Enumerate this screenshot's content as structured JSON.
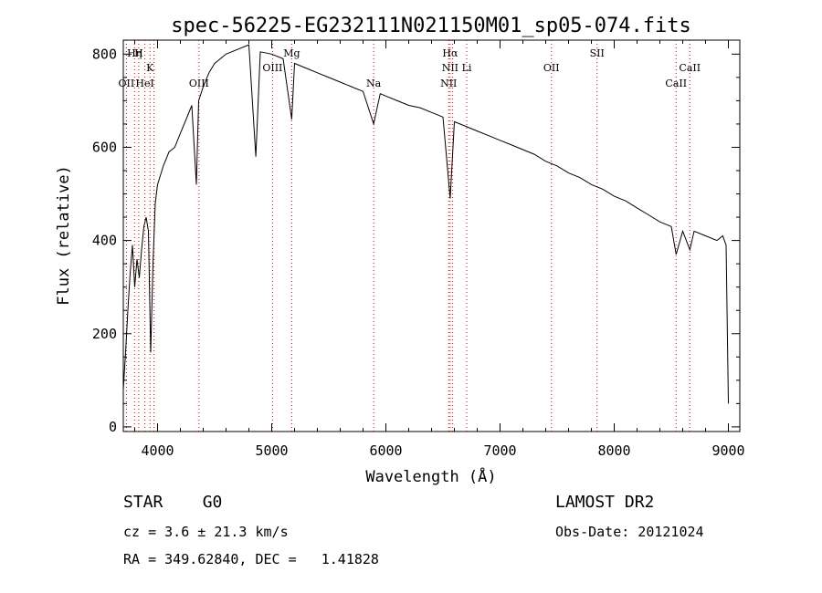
{
  "chart_data": {
    "type": "line",
    "title": "spec-56225-EG232111N021150M01_sp05-074.fits",
    "xlabel": "Wavelength (Å)",
    "ylabel": "Flux (relative)",
    "xlim": [
      3700,
      9100
    ],
    "ylim": [
      -10,
      830
    ],
    "xticks": [
      4000,
      5000,
      6000,
      7000,
      8000,
      9000
    ],
    "yticks": [
      0,
      200,
      400,
      600,
      800
    ],
    "grid": false,
    "line_color": "#000000",
    "marker_color": "#cc0000",
    "series": [
      {
        "points": [
          [
            3700,
            80
          ],
          [
            3720,
            160
          ],
          [
            3740,
            250
          ],
          [
            3760,
            330
          ],
          [
            3780,
            390
          ],
          [
            3800,
            300
          ],
          [
            3820,
            360
          ],
          [
            3840,
            320
          ],
          [
            3860,
            380
          ],
          [
            3880,
            430
          ],
          [
            3900,
            450
          ],
          [
            3920,
            420
          ],
          [
            3940,
            160
          ],
          [
            3960,
            350
          ],
          [
            3980,
            480
          ],
          [
            4000,
            520
          ],
          [
            4050,
            560
          ],
          [
            4100,
            590
          ],
          [
            4150,
            600
          ],
          [
            4200,
            630
          ],
          [
            4250,
            660
          ],
          [
            4300,
            690
          ],
          [
            4340,
            520
          ],
          [
            4360,
            700
          ],
          [
            4400,
            730
          ],
          [
            4450,
            760
          ],
          [
            4500,
            780
          ],
          [
            4550,
            790
          ],
          [
            4600,
            800
          ],
          [
            4700,
            810
          ],
          [
            4800,
            820
          ],
          [
            4861,
            580
          ],
          [
            4900,
            805
          ],
          [
            5000,
            800
          ],
          [
            5100,
            790
          ],
          [
            5175,
            660
          ],
          [
            5200,
            780
          ],
          [
            5300,
            770
          ],
          [
            5400,
            760
          ],
          [
            5500,
            750
          ],
          [
            5600,
            740
          ],
          [
            5700,
            730
          ],
          [
            5800,
            720
          ],
          [
            5893,
            650
          ],
          [
            5950,
            715
          ],
          [
            6000,
            710
          ],
          [
            6100,
            700
          ],
          [
            6200,
            690
          ],
          [
            6300,
            685
          ],
          [
            6400,
            675
          ],
          [
            6500,
            665
          ],
          [
            6563,
            490
          ],
          [
            6600,
            655
          ],
          [
            6700,
            645
          ],
          [
            6800,
            635
          ],
          [
            6900,
            625
          ],
          [
            7000,
            615
          ],
          [
            7100,
            605
          ],
          [
            7200,
            595
          ],
          [
            7300,
            585
          ],
          [
            7400,
            570
          ],
          [
            7500,
            560
          ],
          [
            7600,
            545
          ],
          [
            7700,
            535
          ],
          [
            7800,
            520
          ],
          [
            7900,
            510
          ],
          [
            8000,
            495
          ],
          [
            8100,
            485
          ],
          [
            8200,
            470
          ],
          [
            8300,
            455
          ],
          [
            8400,
            440
          ],
          [
            8500,
            430
          ],
          [
            8542,
            370
          ],
          [
            8600,
            420
          ],
          [
            8662,
            380
          ],
          [
            8700,
            420
          ],
          [
            8800,
            410
          ],
          [
            8900,
            400
          ],
          [
            8950,
            410
          ],
          [
            8980,
            390
          ],
          [
            9000,
            50
          ]
        ]
      }
    ],
    "lines": [
      {
        "x": 3727,
        "labels": [
          "OII"
        ],
        "row": 3
      },
      {
        "x": 3798,
        "labels": [
          "Hη"
        ],
        "row": 0
      },
      {
        "x": 3835,
        "labels": [
          "H"
        ],
        "row": 0
      },
      {
        "x": 3889,
        "labels": [
          "HeI"
        ],
        "row": 3
      },
      {
        "x": 3934,
        "labels": [
          "K"
        ],
        "row": 1
      },
      {
        "x": 3969,
        "labels": [],
        "row": 0
      },
      {
        "x": 4363,
        "labels": [
          "OIII"
        ],
        "row": 3
      },
      {
        "x": 5007,
        "labels": [
          "OIII"
        ],
        "row": 2
      },
      {
        "x": 5175,
        "labels": [
          "Mg"
        ],
        "row": 0
      },
      {
        "x": 5893,
        "labels": [
          "Na"
        ],
        "row": 3
      },
      {
        "x": 6550,
        "labels": [
          "NII"
        ],
        "row": 3
      },
      {
        "x": 6563,
        "labels": [
          "Hα",
          "NII"
        ],
        "row": 0
      },
      {
        "x": 6585,
        "labels": [],
        "row": 0
      },
      {
        "x": 6708,
        "labels": [
          "Li"
        ],
        "row": 2
      },
      {
        "x": 7450,
        "labels": [
          "OII"
        ],
        "row": 2
      },
      {
        "x": 7850,
        "labels": [
          "SII"
        ],
        "row": 0
      },
      {
        "x": 8542,
        "labels": [
          "CaII"
        ],
        "row": 3
      },
      {
        "x": 8662,
        "labels": [
          "CaII"
        ],
        "row": 2
      }
    ]
  },
  "info": {
    "class": "STAR    G0",
    "survey": "LAMOST DR2",
    "redshift": "cz = 3.6 ± 21.3 km/s",
    "obs_date": "Obs-Date: 20121024",
    "coords": "RA = 349.62840, DEC =   1.41828"
  }
}
